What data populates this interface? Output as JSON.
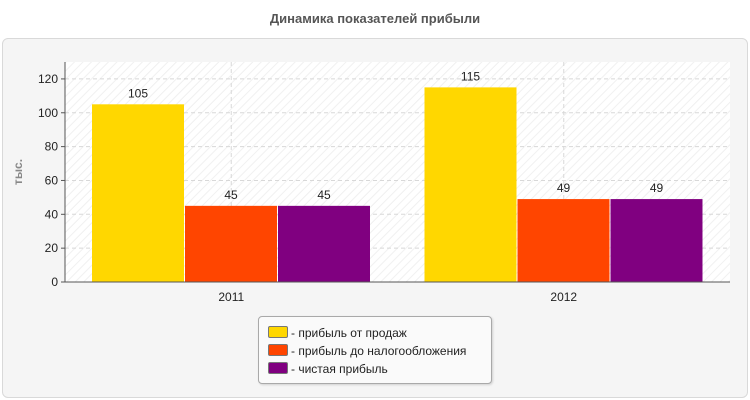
{
  "chart_data": {
    "type": "bar",
    "title": "Динамика показателей прибыли",
    "ylabel": "тыс.",
    "xlabel": "",
    "categories": [
      "2011",
      "2012"
    ],
    "ylim": [
      0,
      130
    ],
    "yticks": [
      0,
      20,
      40,
      60,
      80,
      100,
      120
    ],
    "grid": true,
    "legend_position": "bottom-center",
    "series": [
      {
        "name": "- прибыль от продаж",
        "values": [
          105,
          115
        ],
        "color": "#FFD700"
      },
      {
        "name": "- прибыль до налогообложения",
        "values": [
          45,
          49
        ],
        "color": "#FF4500"
      },
      {
        "name": "- чистая прибыль",
        "values": [
          45,
          49
        ],
        "color": "#800080"
      }
    ]
  }
}
